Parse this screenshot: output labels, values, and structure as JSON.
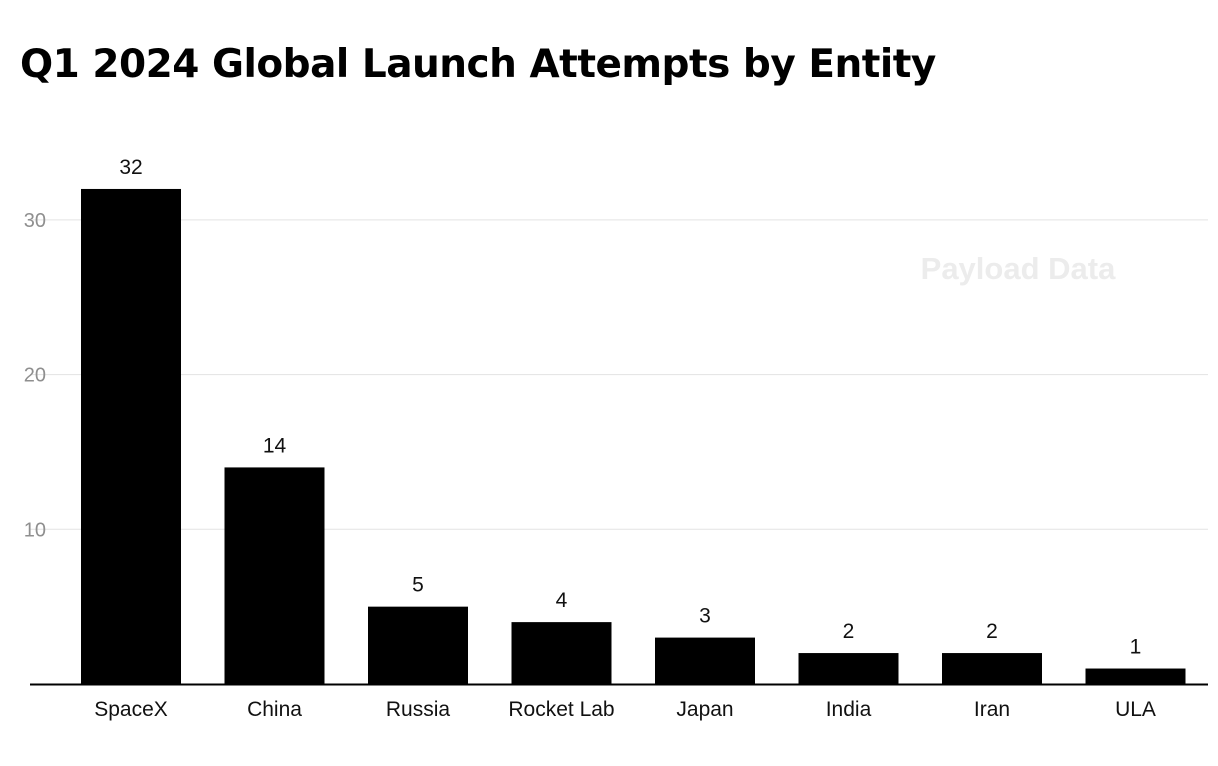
{
  "chart_data": {
    "type": "bar",
    "title": "Q1 2024 Global Launch Attempts by Entity",
    "categories": [
      "SpaceX",
      "China",
      "Russia",
      "Rocket Lab",
      "Japan",
      "India",
      "Iran",
      "ULA"
    ],
    "values": [
      32,
      14,
      5,
      4,
      3,
      2,
      2,
      1
    ],
    "xlabel": "",
    "ylabel": "",
    "ylim": [
      0,
      35
    ],
    "yticks": [
      10,
      20,
      30
    ],
    "grid": true,
    "legend": "none",
    "bar_color": "#000000",
    "watermark": "Payload Data"
  }
}
